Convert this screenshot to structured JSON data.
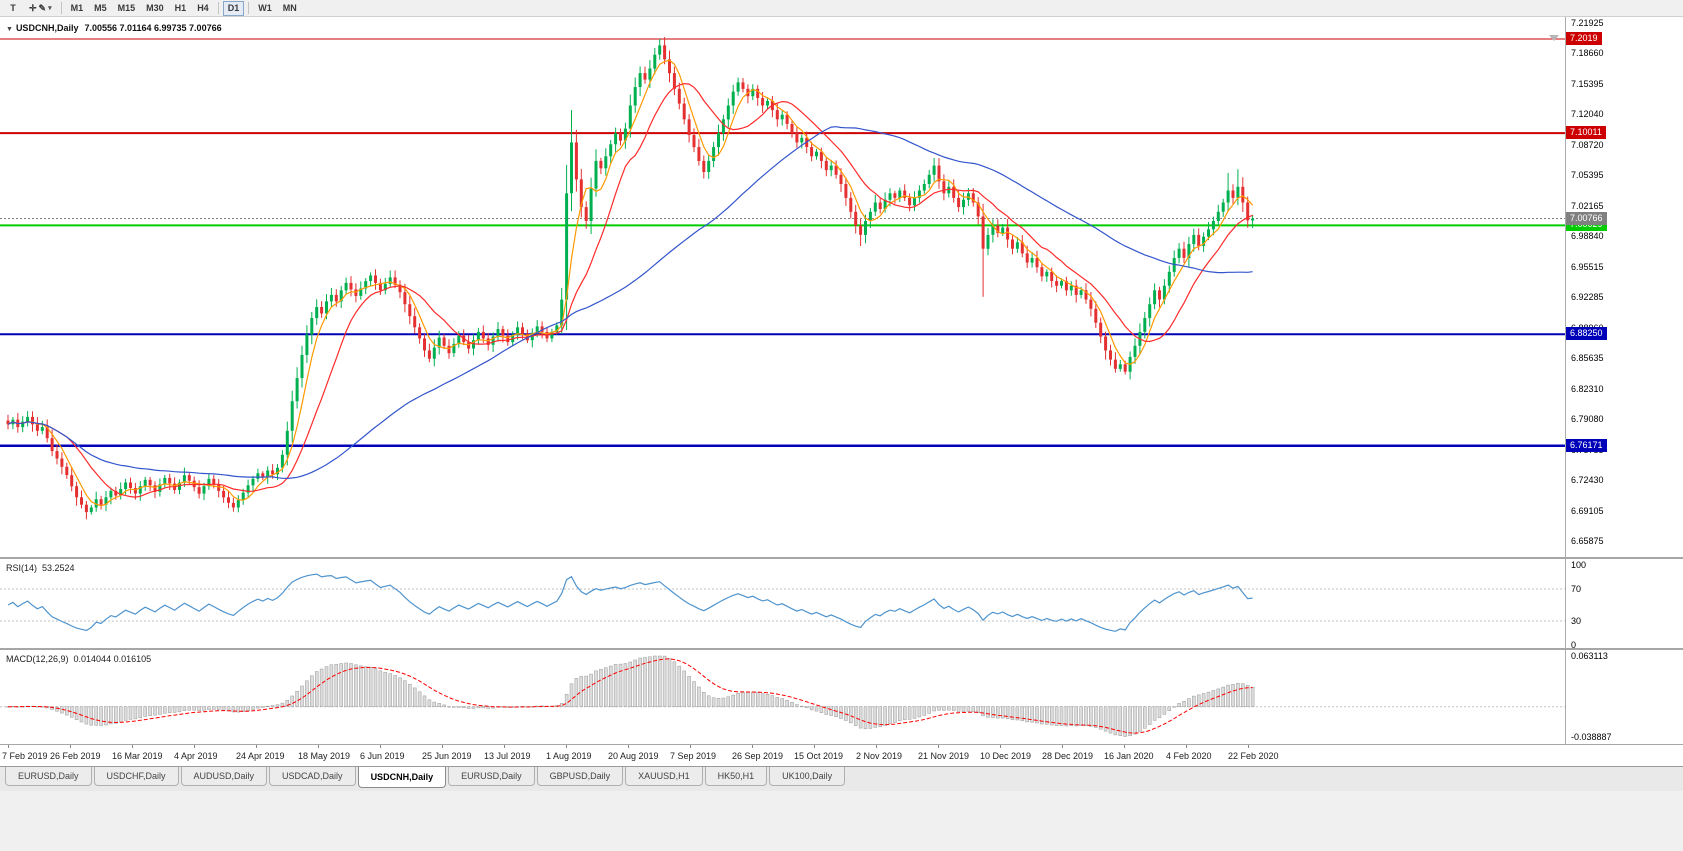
{
  "icons": {
    "title_marker": "▼",
    "crosshair": "✛",
    "pencil": "✎",
    "caret": "▾"
  },
  "toolbar": {
    "tool_label": "T",
    "timeframes": [
      "M1",
      "M5",
      "M15",
      "M30",
      "H1",
      "H4",
      "D1",
      "W1",
      "MN"
    ],
    "active_timeframe": "D1"
  },
  "chart": {
    "symbol_period": "USDCNH,Daily",
    "ohlc_text": "7.00556 7.01164 6.99735 7.00766"
  },
  "tabs": [
    {
      "label": "EURUSD,Daily",
      "active": false
    },
    {
      "label": "USDCHF,Daily",
      "active": false
    },
    {
      "label": "AUDUSD,Daily",
      "active": false
    },
    {
      "label": "USDCAD,Daily",
      "active": false
    },
    {
      "label": "USDCNH,Daily",
      "active": true
    },
    {
      "label": "EURUSD,Daily",
      "active": false
    },
    {
      "label": "GBPUSD,Daily",
      "active": false
    },
    {
      "label": "XAUUSD,H1",
      "active": false
    },
    {
      "label": "HK50,H1",
      "active": false
    },
    {
      "label": "UK100,Daily",
      "active": false
    }
  ],
  "chart_data": {
    "type": "candlestick",
    "symbol": "USDCNH",
    "timeframe": "Daily",
    "colors": {
      "up": "#00B050",
      "down": "#E43030"
    },
    "y_range": {
      "top": 7.21925,
      "bottom": 6.65875
    },
    "y_ticks": [
      "7.21925",
      "7.18660",
      "7.15395",
      "7.12040",
      "7.08720",
      "7.05395",
      "7.02165",
      "6.98840",
      "6.95515",
      "6.92285",
      "6.88960",
      "6.85635",
      "6.82310",
      "6.79080",
      "6.75755",
      "6.72430",
      "6.69105",
      "6.65875"
    ],
    "x_labels": [
      "7 Feb 2019",
      "26 Feb 2019",
      "16 Mar 2019",
      "4 Apr 2019",
      "24 Apr 2019",
      "18 May 2019",
      "6 Jun 2019",
      "25 Jun 2019",
      "13 Jul 2019",
      "1 Aug 2019",
      "20 Aug 2019",
      "7 Sep 2019",
      "26 Sep 2019",
      "15 Oct 2019",
      "2 Nov 2019",
      "21 Nov 2019",
      "10 Dec 2019",
      "28 Dec 2019",
      "16 Jan 2020",
      "4 Feb 2020",
      "22 Feb 2020"
    ],
    "last_candle": {
      "open": 7.00556,
      "high": 7.01164,
      "low": 6.99735,
      "close": 7.00766
    },
    "current_price": {
      "price": 7.00766,
      "label": "7.00766",
      "color": "#808080"
    },
    "levels": [
      {
        "price": 7.2019,
        "label": "7.2019",
        "color": "#CC0000",
        "width": 1
      },
      {
        "price": 7.10011,
        "label": "7.10011",
        "color": "#CC0000",
        "width": 2
      },
      {
        "price": 7.00029,
        "label": "7.00029",
        "color": "#00CC00",
        "width": 2
      },
      {
        "price": 6.8825,
        "label": "6.88250",
        "color": "#0000B8",
        "width": 2
      },
      {
        "price": 6.76171,
        "label": "6.76171",
        "color": "#0000B8",
        "width": 2.5
      }
    ],
    "moving_averages": [
      {
        "period": 5,
        "color": "#FF9900"
      },
      {
        "period": 13,
        "color": "#FF2A2A"
      },
      {
        "period": 55,
        "color": "#3355CC"
      }
    ],
    "indicators": {
      "rsi": {
        "label": "RSI(14)",
        "value": "53.2524",
        "period": 14,
        "color": "#4F94CD",
        "levels": [
          70,
          30
        ],
        "scale_labels": [
          {
            "v": 100,
            "t": "100"
          },
          {
            "v": 70,
            "t": "70"
          },
          {
            "v": 30,
            "t": "30"
          },
          {
            "v": 0,
            "t": "0"
          }
        ]
      },
      "macd": {
        "label": "MACD(12,26,9)",
        "values": "0.014044 0.016105",
        "fast": 12,
        "slow": 26,
        "signal": 9,
        "scale_top": "0.063113",
        "scale_bottom": "-0.038887",
        "scale_top_num": 0.063113,
        "scale_bottom_num": -0.038887,
        "histogram_color": "#DCDCDC",
        "histogram_stroke": "#9A9A9A",
        "signal_color": "#FF0000"
      }
    },
    "closes": [
      6.785,
      6.79,
      6.782,
      6.788,
      6.793,
      6.785,
      6.778,
      6.782,
      6.77,
      6.756,
      6.748,
      6.739,
      6.73,
      6.718,
      6.706,
      6.698,
      6.69,
      6.695,
      6.704,
      6.698,
      6.706,
      6.713,
      6.708,
      6.715,
      6.722,
      6.716,
      6.71,
      6.718,
      6.725,
      6.719,
      6.712,
      6.72,
      6.727,
      6.721,
      6.714,
      6.722,
      6.73,
      6.724,
      6.717,
      6.71,
      6.718,
      6.726,
      6.72,
      6.713,
      6.706,
      6.7,
      6.695,
      6.703,
      6.711,
      6.719,
      6.726,
      6.732,
      6.728,
      6.735,
      6.731,
      6.738,
      6.752,
      6.778,
      6.81,
      6.835,
      6.86,
      6.882,
      6.9,
      6.912,
      6.905,
      6.918,
      6.925,
      6.918,
      6.93,
      6.938,
      6.931,
      6.924,
      6.932,
      6.94,
      6.946,
      6.938,
      6.93,
      6.937,
      6.944,
      6.936,
      6.928,
      6.915,
      6.902,
      6.89,
      6.878,
      6.865,
      6.856,
      6.868,
      6.879,
      6.87,
      6.862,
      6.872,
      6.881,
      6.874,
      6.867,
      6.876,
      6.885,
      6.878,
      6.871,
      6.88,
      6.888,
      6.881,
      6.874,
      6.882,
      6.89,
      6.883,
      6.876,
      6.884,
      6.891,
      6.885,
      6.878,
      6.885,
      6.892,
      6.92,
      7.035,
      7.09,
      7.05,
      7.02,
      7.005,
      7.04,
      7.07,
      7.062,
      7.075,
      7.088,
      7.1,
      7.092,
      7.105,
      7.13,
      7.15,
      7.165,
      7.158,
      7.17,
      7.185,
      7.195,
      7.18,
      7.165,
      7.148,
      7.132,
      7.115,
      7.098,
      7.085,
      7.07,
      7.058,
      7.07,
      7.085,
      7.1,
      7.115,
      7.13,
      7.145,
      7.155,
      7.148,
      7.14,
      7.148,
      7.138,
      7.13,
      7.135,
      7.125,
      7.115,
      7.12,
      7.11,
      7.1,
      7.09,
      7.095,
      7.085,
      7.075,
      7.08,
      7.07,
      7.06,
      7.065,
      7.055,
      7.045,
      7.03,
      7.015,
      7.0,
      6.99,
      7.005,
      7.015,
      7.025,
      7.018,
      7.028,
      7.035,
      7.03,
      7.038,
      7.03,
      7.022,
      7.03,
      7.038,
      7.045,
      7.055,
      7.065,
      7.048,
      7.035,
      7.042,
      7.03,
      7.02,
      7.028,
      7.035,
      7.025,
      7.01,
      6.975,
      6.99,
      7.0,
      6.992,
      6.998,
      6.985,
      6.975,
      6.982,
      6.97,
      6.96,
      6.965,
      6.955,
      6.945,
      6.95,
      6.94,
      6.935,
      6.94,
      6.93,
      6.935,
      6.925,
      6.93,
      6.92,
      6.91,
      6.895,
      6.88,
      6.865,
      6.855,
      6.845,
      6.85,
      6.842,
      6.858,
      6.87,
      6.885,
      6.9,
      6.915,
      6.93,
      6.92,
      6.935,
      6.95,
      6.965,
      6.975,
      6.965,
      6.98,
      6.99,
      6.978,
      6.988,
      6.996,
      7.005,
      7.015,
      7.025,
      7.038,
      7.03,
      7.042,
      7.025,
      7.0056,
      7.00766
    ],
    "wick_overrides": {
      "115": {
        "high": 7.125
      },
      "133": {
        "high": 7.2019
      },
      "174": {
        "low": 6.978
      },
      "199": {
        "low": 6.923
      },
      "228": {
        "low": 6.839
      },
      "249": {
        "high": 7.057
      },
      "251": {
        "high": 7.061
      },
      "254": {
        "high": 7.01164,
        "low": 6.99735
      }
    }
  }
}
